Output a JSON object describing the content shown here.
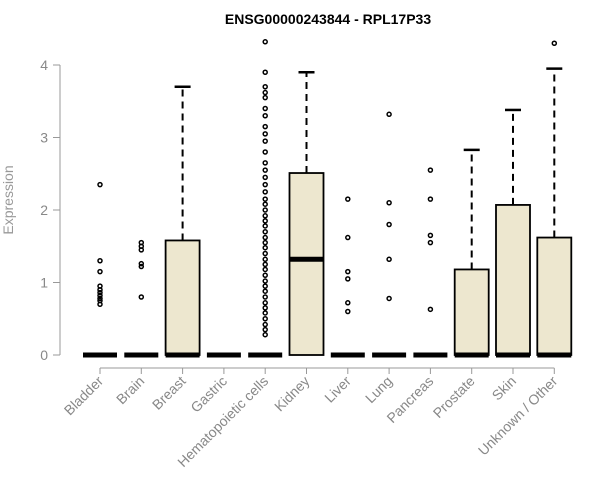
{
  "chart_data": {
    "type": "boxplot",
    "title": "ENSG00000243844 - RPL17P33",
    "xlabel": "",
    "ylabel": "Expression",
    "ylim": [
      0,
      4.35
    ],
    "yticks": [
      "0",
      "1",
      "2",
      "3",
      "4"
    ],
    "grid": false,
    "legend": "none",
    "box_fill": "#ede7cf",
    "stroke_color": "#000000",
    "categories": [
      "Bladder",
      "Brain",
      "Breast",
      "Gastric",
      "Hematopoietic cells",
      "Kidney",
      "Liver",
      "Lung",
      "Pancreas",
      "Prostate",
      "Skin",
      "Unknown / Other"
    ],
    "boxes": [
      {
        "category": "Bladder",
        "q1": 0,
        "median": 0,
        "q3": 0,
        "whisker_low": 0,
        "whisker_high": 0,
        "outliers": [
          0.7,
          0.75,
          0.78,
          0.82,
          0.86,
          0.9,
          0.95,
          1.15,
          1.3,
          2.35
        ]
      },
      {
        "category": "Brain",
        "q1": 0,
        "median": 0,
        "q3": 0,
        "whisker_low": 0,
        "whisker_high": 0,
        "outliers": [
          0.8,
          1.22,
          1.26,
          1.45,
          1.5,
          1.55
        ]
      },
      {
        "category": "Breast",
        "q1": 0,
        "median": 0,
        "q3": 1.58,
        "whisker_low": 0,
        "whisker_high": 3.7,
        "outliers": []
      },
      {
        "category": "Gastric",
        "q1": 0,
        "median": 0,
        "q3": 0,
        "whisker_low": 0,
        "whisker_high": 0,
        "outliers": []
      },
      {
        "category": "Hematopoietic cells",
        "q1": 0,
        "median": 0,
        "q3": 0,
        "whisker_low": 0,
        "whisker_high": 0,
        "outliers": [
          0.28,
          0.35,
          0.42,
          0.5,
          0.58,
          0.65,
          0.72,
          0.8,
          0.88,
          0.95,
          1.02,
          1.1,
          1.18,
          1.25,
          1.32,
          1.4,
          1.48,
          1.55,
          1.62,
          1.7,
          1.78,
          1.85,
          1.92,
          2.0,
          2.08,
          2.15,
          2.25,
          2.35,
          2.45,
          2.55,
          2.65,
          2.8,
          2.95,
          3.05,
          3.15,
          3.3,
          3.4,
          3.55,
          3.62,
          3.7,
          3.9,
          4.32
        ]
      },
      {
        "category": "Kidney",
        "q1": 0,
        "median": 1.32,
        "q3": 2.51,
        "whisker_low": 0,
        "whisker_high": 3.9,
        "outliers": []
      },
      {
        "category": "Liver",
        "q1": 0,
        "median": 0,
        "q3": 0,
        "whisker_low": 0,
        "whisker_high": 0,
        "outliers": [
          0.6,
          0.72,
          1.05,
          1.15,
          1.62,
          2.15
        ]
      },
      {
        "category": "Lung",
        "q1": 0,
        "median": 0,
        "q3": 0,
        "whisker_low": 0,
        "whisker_high": 0,
        "outliers": [
          0.78,
          1.32,
          1.8,
          2.1,
          3.32
        ]
      },
      {
        "category": "Pancreas",
        "q1": 0,
        "median": 0,
        "q3": 0,
        "whisker_low": 0,
        "whisker_high": 0,
        "outliers": [
          0.63,
          1.55,
          1.65,
          2.15,
          2.55
        ]
      },
      {
        "category": "Prostate",
        "q1": 0,
        "median": 0,
        "q3": 1.18,
        "whisker_low": 0,
        "whisker_high": 2.83,
        "outliers": []
      },
      {
        "category": "Skin",
        "q1": 0,
        "median": 0,
        "q3": 2.07,
        "whisker_low": 0,
        "whisker_high": 3.38,
        "outliers": []
      },
      {
        "category": "Unknown / Other",
        "q1": 0,
        "median": 0,
        "q3": 1.62,
        "whisker_low": 0,
        "whisker_high": 3.95,
        "outliers": [
          4.3
        ]
      }
    ]
  }
}
